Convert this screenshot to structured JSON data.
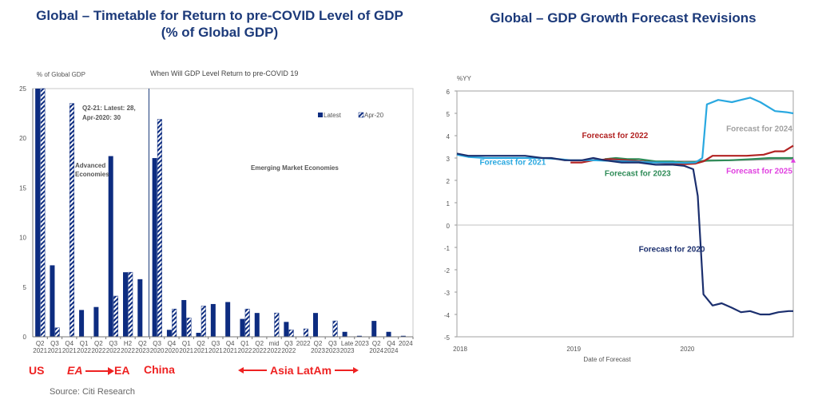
{
  "left_title_line1": "Global – Timetable for Return to pre-COVID Level of GDP",
  "left_title_line2": "(% of Global GDP)",
  "right_title": "Global – GDP Growth Forecast Revisions",
  "source": "Source: Citi Research",
  "regions": {
    "us": "US",
    "ea_italic": "EA",
    "ea": "EA",
    "china": "China",
    "asia_latam": "Asia LatAm"
  },
  "colors": {
    "latest": "#0d2c80",
    "title": "#1c3a7a",
    "region_label": "#ee2222",
    "f2020": "#1b2f6e",
    "f2021": "#29a8e0",
    "f2022": "#b22222",
    "f2023": "#2e8b57",
    "f2024": "#a0a0a0",
    "f2025": "#e040e0"
  },
  "chart_data": [
    {
      "type": "bar",
      "title": "When Will GDP Level Return to pre-COVID 19",
      "ylabel": "% of Global GDP",
      "ylim": [
        0,
        25
      ],
      "yticks": [
        0,
        5,
        10,
        15,
        20,
        25
      ],
      "legend": [
        "Latest",
        "Apr-20"
      ],
      "legend_position": "top-right",
      "annotations": {
        "us_note_line1": "Q2-21: Latest: 28,",
        "us_note_line2": "Apr-2020: 30",
        "advanced_line1": "Advanced",
        "advanced_line2": "Economies",
        "emerging": "Emerging Market Economies"
      },
      "categories": [
        [
          "Q2",
          "2021"
        ],
        [
          "Q3",
          "2021"
        ],
        [
          "Q4",
          "2021"
        ],
        [
          "Q1",
          "2022"
        ],
        [
          "Q2",
          "2022"
        ],
        [
          "Q3",
          "2022"
        ],
        [
          "H2",
          "2022"
        ],
        [
          "Q2",
          "2023"
        ],
        [
          "Q3",
          "2020"
        ],
        [
          "Q4",
          "2020"
        ],
        [
          "Q1",
          "2021"
        ],
        [
          "Q2",
          "2021"
        ],
        [
          "Q3",
          "2021"
        ],
        [
          "Q4",
          "2021"
        ],
        [
          "Q1",
          "2022"
        ],
        [
          "Q2",
          "2022"
        ],
        [
          "mid",
          "2022"
        ],
        [
          "Q3",
          "2022"
        ],
        [
          "2022",
          ""
        ],
        [
          "Q2",
          "2023"
        ],
        [
          "Q3",
          "2023"
        ],
        [
          "Late",
          "2023"
        ],
        [
          "2023",
          ""
        ],
        [
          "Q2",
          "2024"
        ],
        [
          "Q4",
          "2024"
        ],
        [
          "2024",
          ""
        ]
      ],
      "series": [
        {
          "name": "Latest",
          "values": [
            28,
            7.2,
            0,
            2.7,
            3.0,
            18.2,
            6.5,
            5.8,
            18.0,
            0.7,
            3.7,
            0.4,
            3.3,
            3.5,
            1.8,
            2.4,
            0,
            1.5,
            0,
            2.4,
            0,
            0.5,
            0.1,
            1.6,
            0.5,
            0.1
          ]
        },
        {
          "name": "Apr-20",
          "values": [
            30,
            0.9,
            23.5,
            0,
            0,
            4.1,
            6.5,
            0,
            21.9,
            2.8,
            1.9,
            3.1,
            0,
            0,
            2.8,
            0,
            2.4,
            0.7,
            0.8,
            0,
            1.6,
            0,
            0,
            0,
            0,
            0
          ]
        }
      ],
      "divider_after_index": 7
    },
    {
      "type": "line",
      "ylabel": "%YY",
      "xlabel": "Date of Forecast",
      "ylim": [
        -5,
        6
      ],
      "yticks": [
        -5,
        -4,
        -3,
        -2,
        -1,
        0,
        1,
        2,
        3,
        4,
        5,
        6
      ],
      "xlim": [
        2018,
        2020.96
      ],
      "xticks": [
        "2018",
        "2019",
        "2020"
      ],
      "series": [
        {
          "name": "Forecast for 2020",
          "color": "f2020",
          "label_pos": [
            2019.6,
            -1.2
          ],
          "x": [
            2018.0,
            2018.1,
            2018.25,
            2018.5,
            2018.6,
            2018.75,
            2018.83,
            2018.95,
            2019.1,
            2019.2,
            2019.3,
            2019.45,
            2019.6,
            2019.75,
            2019.85,
            2019.9,
            2020.0,
            2020.08,
            2020.12,
            2020.17,
            2020.25,
            2020.33,
            2020.42,
            2020.5,
            2020.58,
            2020.67,
            2020.75,
            2020.83,
            2020.92,
            2020.96
          ],
          "y": [
            3.2,
            3.1,
            3.1,
            3.1,
            3.1,
            3.0,
            3.0,
            2.9,
            2.9,
            3.0,
            2.9,
            2.8,
            2.8,
            2.7,
            2.7,
            2.7,
            2.65,
            2.5,
            1.3,
            -3.1,
            -3.6,
            -3.5,
            -3.7,
            -3.9,
            -3.85,
            -4.0,
            -4.0,
            -3.9,
            -3.85,
            -3.85
          ]
        },
        {
          "name": "Forecast for 2021",
          "color": "f2021",
          "label_pos": [
            2018.2,
            2.7
          ],
          "x": [
            2018.0,
            2018.1,
            2018.25,
            2018.5,
            2018.75,
            2018.9,
            2019.0,
            2019.2,
            2019.5,
            2019.75,
            2019.9,
            2020.0,
            2020.1,
            2020.16,
            2020.2,
            2020.3,
            2020.42,
            2020.5,
            2020.58,
            2020.67,
            2020.8,
            2020.9,
            2020.96
          ],
          "y": [
            3.15,
            3.05,
            3.0,
            3.0,
            3.0,
            2.95,
            2.9,
            2.9,
            2.85,
            2.8,
            2.8,
            2.78,
            2.8,
            3.0,
            5.4,
            5.6,
            5.5,
            5.6,
            5.7,
            5.5,
            5.1,
            5.05,
            5.0
          ]
        },
        {
          "name": "Forecast for 2022",
          "color": "f2022",
          "label_pos": [
            2019.1,
            3.9
          ],
          "x": [
            2019.0,
            2019.1,
            2019.2,
            2019.35,
            2019.5,
            2019.75,
            2019.9,
            2020.0,
            2020.1,
            2020.17,
            2020.25,
            2020.4,
            2020.55,
            2020.7,
            2020.8,
            2020.88,
            2020.96
          ],
          "y": [
            2.8,
            2.8,
            2.9,
            2.95,
            2.9,
            2.8,
            2.75,
            2.72,
            2.75,
            2.85,
            3.1,
            3.1,
            3.1,
            3.15,
            3.3,
            3.3,
            3.55
          ]
        },
        {
          "name": "Forecast for 2023",
          "color": "f2023",
          "label_pos": [
            2019.3,
            2.2
          ],
          "x": [
            2019.3,
            2019.4,
            2019.5,
            2019.6,
            2019.75,
            2019.9,
            2020.0,
            2020.1,
            2020.2,
            2020.4,
            2020.6,
            2020.75,
            2020.96
          ],
          "y": [
            2.95,
            3.0,
            2.95,
            2.95,
            2.85,
            2.85,
            2.8,
            2.82,
            2.88,
            2.9,
            2.95,
            3.0,
            3.0
          ]
        },
        {
          "name": "Forecast for 2024",
          "color": "f2024",
          "label_pos": [
            2020.37,
            4.2
          ],
          "x": [
            2019.85,
            2019.95,
            2020.1,
            2020.2,
            2020.4,
            2020.6,
            2020.8,
            2020.96
          ],
          "y": [
            2.8,
            2.85,
            2.85,
            2.9,
            2.9,
            2.92,
            2.95,
            2.95
          ]
        },
        {
          "name": "Forecast for 2025",
          "color": "f2025",
          "label_pos": [
            2020.37,
            2.3
          ],
          "x": [
            2020.96
          ],
          "y": [
            2.9
          ]
        }
      ]
    }
  ]
}
